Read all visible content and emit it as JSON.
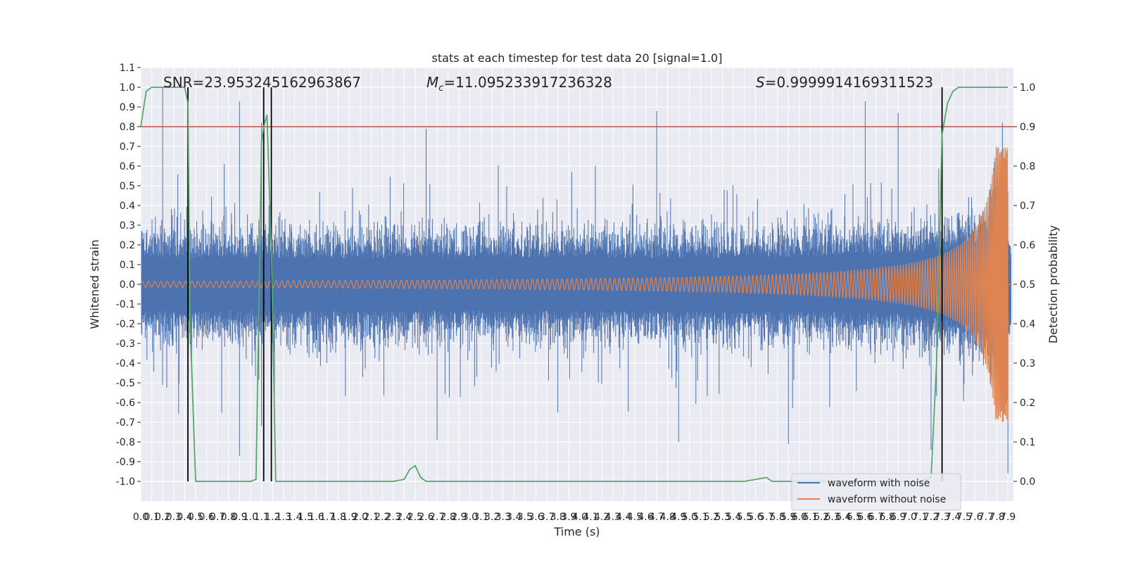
{
  "chart_data": {
    "type": "line",
    "title": "stats at each timestep for test data 20 [signal=1.0]",
    "xlabel": "Time (s)",
    "ylabel": "Whitened strain",
    "ylabel_right": "Detection probability",
    "xlim": [
      0.0,
      7.95
    ],
    "ylim": [
      -1.1,
      1.1
    ],
    "ylim_right": [
      -0.05,
      1.05
    ],
    "x_ticks": [
      "0.0",
      "0.1",
      "0.2",
      "0.3",
      "0.4",
      "0.5",
      "0.6",
      "0.7",
      "0.8",
      "0.9",
      "1.0",
      "1.1",
      "1.2",
      "1.3",
      "1.4",
      "1.5",
      "1.6",
      "1.7",
      "1.8",
      "1.9",
      "2.0",
      "2.1",
      "2.2",
      "2.3",
      "2.4",
      "2.5",
      "2.6",
      "2.7",
      "2.8",
      "2.9",
      "3.0",
      "3.1",
      "3.2",
      "3.3",
      "3.4",
      "3.5",
      "3.6",
      "3.7",
      "3.8",
      "3.9",
      "4.0",
      "4.1",
      "4.2",
      "4.3",
      "4.4",
      "4.5",
      "4.6",
      "4.7",
      "4.8",
      "4.9",
      "5.0",
      "5.1",
      "5.2",
      "5.3",
      "5.4",
      "5.5",
      "5.6",
      "5.7",
      "5.8",
      "5.9",
      "6.0",
      "6.1",
      "6.2",
      "6.3",
      "6.4",
      "6.5",
      "6.6",
      "6.7",
      "6.8",
      "6.9",
      "7.0",
      "7.1",
      "7.2",
      "7.3",
      "7.4",
      "7.5",
      "7.6",
      "7.7",
      "7.8",
      "7.9"
    ],
    "y_ticks": [
      "1.1",
      "1.0",
      "0.9",
      "0.8",
      "0.7",
      "0.6",
      "0.5",
      "0.4",
      "0.3",
      "0.2",
      "0.1",
      "0.0",
      "-0.1",
      "-0.2",
      "-0.3",
      "-0.4",
      "-0.5",
      "-0.6",
      "-0.7",
      "-0.8",
      "-0.9",
      "-1.0"
    ],
    "y_ticks_right": [
      "1.0",
      "0.9",
      "0.8",
      "0.7",
      "0.6",
      "0.5",
      "0.4",
      "0.3",
      "0.2",
      "0.1",
      "0.0"
    ],
    "annotations": {
      "snr": "SNR=23.953245162963867",
      "mc": "=11.095233917236328",
      "s": "=0.9999914169311523"
    },
    "threshold_right": 0.9,
    "vertical_lines_x": [
      0.43,
      1.12,
      1.19,
      7.3
    ],
    "legend": {
      "placement": "lower right",
      "entries": [
        "waveform with noise",
        "waveform without noise"
      ]
    },
    "colors": {
      "noisy": "#4c72b0",
      "clean": "#dd8452",
      "prob": "#55a868",
      "threshold": "#c44e52",
      "background": "#eaeaf2",
      "grid": "#ffffff"
    },
    "series": [
      {
        "name": "waveform with noise",
        "axis": "left",
        "generation": "band-limited noise with envelope growing toward merger",
        "noise_amplitude_approx": 0.5,
        "peaks": [
          [
            0.2,
            1.0
          ],
          [
            0.9,
            0.93
          ],
          [
            1.1,
            0.82
          ],
          [
            2.6,
            0.79
          ],
          [
            4.7,
            0.88
          ],
          [
            6.6,
            0.93
          ],
          [
            6.9,
            0.87
          ],
          [
            7.3,
            0.97
          ],
          [
            7.85,
            0.82
          ],
          [
            0.9,
            -0.87
          ],
          [
            1.1,
            -0.72
          ],
          [
            2.7,
            -0.79
          ],
          [
            4.9,
            -0.8
          ],
          [
            5.9,
            -0.81
          ],
          [
            7.2,
            -0.84
          ],
          [
            7.9,
            -0.96
          ]
        ]
      },
      {
        "name": "waveform without noise",
        "axis": "left",
        "generation": "chirp: amplitude grows and frequency increases toward merger",
        "merger_time": 7.9,
        "start_amplitude": 0.015,
        "peak_amplitude": 0.7
      },
      {
        "name": "detection probability",
        "axis": "right",
        "x": [
          0.0,
          0.05,
          0.1,
          0.2,
          0.3,
          0.4,
          0.43,
          0.45,
          0.5,
          0.6,
          0.8,
          1.0,
          1.05,
          1.1,
          1.12,
          1.15,
          1.19,
          1.23,
          1.3,
          1.5,
          2.0,
          2.3,
          2.4,
          2.45,
          2.5,
          2.55,
          2.6,
          2.8,
          3.0,
          4.0,
          5.0,
          5.5,
          5.6,
          5.7,
          5.75,
          5.8,
          6.0,
          7.0,
          7.1,
          7.2,
          7.25,
          7.3,
          7.35,
          7.4,
          7.45,
          7.5,
          7.6,
          7.7,
          7.8,
          7.9
        ],
        "y": [
          0.9,
          0.99,
          1.0,
          1.0,
          1.0,
          1.0,
          0.96,
          0.4,
          0.0,
          0.0,
          0.0,
          0.0,
          0.005,
          0.86,
          0.9,
          0.93,
          0.58,
          0.0,
          0.0,
          0.0,
          0.0,
          0.0,
          0.005,
          0.03,
          0.04,
          0.01,
          0.0,
          0.0,
          0.0,
          0.0,
          0.0,
          0.0,
          0.005,
          0.01,
          0.0,
          0.0,
          0.0,
          0.0,
          0.0,
          0.01,
          0.3,
          0.88,
          0.96,
          0.99,
          1.0,
          1.0,
          1.0,
          1.0,
          1.0,
          1.0
        ]
      }
    ]
  }
}
